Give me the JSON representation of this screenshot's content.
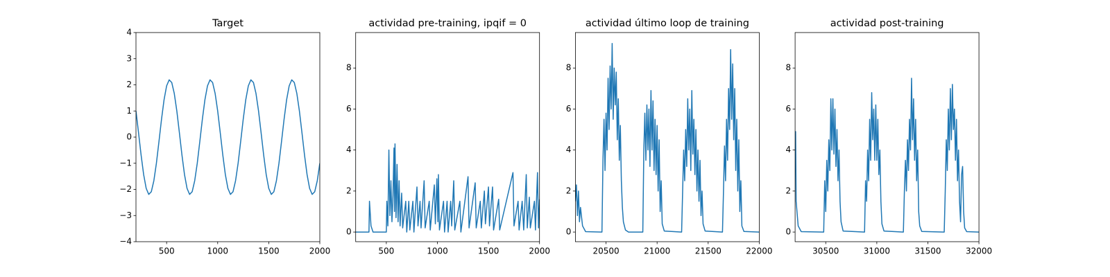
{
  "chart_data": [
    {
      "type": "line",
      "title": "Target",
      "color": "#1f77b4",
      "xlim": [
        200,
        2000
      ],
      "xticks": [
        500,
        1000,
        1500,
        2000
      ],
      "ylim": [
        -4,
        4
      ],
      "yticks": [
        {
          "value": -4,
          "label": "−4"
        },
        {
          "value": -3,
          "label": "−3"
        },
        {
          "value": -2,
          "label": "−2"
        },
        {
          "value": -1,
          "label": "−1"
        },
        0,
        1,
        2,
        3,
        4
      ],
      "x": [
        200,
        225,
        250,
        275,
        300,
        325,
        350,
        375,
        400,
        425,
        450,
        475,
        500,
        525,
        550,
        575,
        600,
        625,
        650,
        675,
        700,
        725,
        750,
        775,
        800,
        825,
        850,
        875,
        900,
        925,
        950,
        975,
        1000,
        1025,
        1050,
        1075,
        1100,
        1125,
        1150,
        1175,
        1200,
        1225,
        1250,
        1275,
        1300,
        1325,
        1350,
        1375,
        1400,
        1425,
        1450,
        1475,
        1500,
        1525,
        1550,
        1575,
        1600,
        1625,
        1650,
        1675,
        1700,
        1725,
        1750,
        1775,
        1800,
        1825,
        1850,
        1875,
        1900,
        1925,
        1950,
        1975,
        2000
      ],
      "values": [
        1.0,
        0.17,
        -0.68,
        -1.43,
        -1.96,
        -2.19,
        -2.09,
        -1.67,
        -1.0,
        -0.17,
        0.68,
        1.43,
        1.96,
        2.19,
        2.09,
        1.67,
        1.0,
        0.17,
        -0.68,
        -1.43,
        -1.96,
        -2.19,
        -2.09,
        -1.67,
        -1.0,
        -0.17,
        0.68,
        1.43,
        1.96,
        2.19,
        2.09,
        1.67,
        1.0,
        0.17,
        -0.68,
        -1.43,
        -1.96,
        -2.19,
        -2.09,
        -1.67,
        -1.0,
        -0.17,
        0.68,
        1.43,
        1.96,
        2.19,
        2.09,
        1.67,
        1.0,
        0.17,
        -0.68,
        -1.43,
        -1.96,
        -2.19,
        -2.09,
        -1.67,
        -1.0,
        -0.17,
        0.68,
        1.43,
        1.96,
        2.19,
        2.09,
        1.67,
        1.0,
        0.17,
        -0.68,
        -1.43,
        -1.96,
        -2.19,
        -2.09,
        -1.67,
        -1.0
      ]
    },
    {
      "type": "line",
      "title": "actividad pre-training, ipqif = 0",
      "color": "#1f77b4",
      "xlim": [
        200,
        2000
      ],
      "xticks": [
        500,
        1000,
        1500,
        2000
      ],
      "ylim": [
        -0.47,
        9.73
      ],
      "yticks": [
        0,
        2,
        4,
        6,
        8
      ],
      "x": [
        200,
        330,
        335,
        350,
        370,
        500,
        505,
        515,
        525,
        535,
        545,
        555,
        565,
        575,
        580,
        585,
        595,
        605,
        615,
        625,
        635,
        650,
        660,
        690,
        700,
        720,
        730,
        760,
        770,
        800,
        810,
        830,
        840,
        870,
        880,
        920,
        930,
        970,
        980,
        995,
        1005,
        1010,
        1020,
        1060,
        1070,
        1095,
        1105,
        1130,
        1140,
        1160,
        1170,
        1220,
        1230,
        1300,
        1310,
        1370,
        1380,
        1420,
        1430,
        1460,
        1470,
        1500,
        1510,
        1540,
        1550,
        1600,
        1610,
        1740,
        1750,
        1790,
        1800,
        1830,
        1845,
        1870,
        1880,
        1900,
        1910,
        1950,
        1960,
        1980,
        1990,
        2000
      ],
      "values": [
        0,
        0,
        1.5,
        0.3,
        0,
        0,
        1.5,
        0.3,
        4.0,
        0.8,
        2.5,
        0.5,
        1.8,
        4.1,
        1.0,
        4.3,
        0.7,
        3.3,
        0.5,
        2.5,
        0.3,
        1.9,
        0.2,
        1.5,
        0,
        1.5,
        0.1,
        1.5,
        0,
        2.2,
        0.3,
        1.5,
        0.2,
        2.5,
        0.2,
        1.5,
        0.1,
        2.3,
        0.4,
        2.6,
        0.5,
        2.8,
        0.1,
        1.5,
        0,
        1.5,
        0,
        1.5,
        0.3,
        2.5,
        0.1,
        1.5,
        0,
        2.7,
        0.2,
        2.4,
        0.2,
        1.5,
        0.2,
        2.0,
        0.4,
        2.2,
        0.3,
        2.2,
        0.1,
        1.6,
        0.1,
        2.9,
        0.3,
        1.5,
        0.1,
        1.5,
        0.1,
        2.8,
        0.2,
        1.7,
        0.2,
        1.5,
        0.1,
        2.9,
        0.2,
        1.6
      ]
    },
    {
      "type": "line",
      "title": "actividad último loop de training",
      "color": "#1f77b4",
      "xlim": [
        20200,
        22000
      ],
      "xticks": [
        20500,
        21000,
        21500,
        22000
      ],
      "ylim": [
        -0.47,
        9.73
      ],
      "yticks": [
        0,
        2,
        4,
        6,
        8
      ],
      "x": [
        20200,
        20210,
        20220,
        20230,
        20240,
        20250,
        20270,
        20300,
        20460,
        20470,
        20480,
        20490,
        20500,
        20510,
        20520,
        20530,
        20540,
        20550,
        20560,
        20570,
        20580,
        20590,
        20600,
        20610,
        20620,
        20630,
        20640,
        20650,
        20660,
        20670,
        20690,
        20720,
        20860,
        20870,
        20880,
        20890,
        20900,
        20910,
        20920,
        20930,
        20940,
        20950,
        20960,
        20970,
        20980,
        20990,
        21000,
        21010,
        21020,
        21030,
        21040,
        21050,
        21070,
        21240,
        21250,
        21260,
        21270,
        21280,
        21290,
        21300,
        21310,
        21320,
        21330,
        21340,
        21350,
        21360,
        21370,
        21380,
        21390,
        21400,
        21410,
        21420,
        21430,
        21440,
        21450,
        21470,
        21640,
        21650,
        21660,
        21670,
        21680,
        21690,
        21700,
        21710,
        21720,
        21730,
        21740,
        21750,
        21760,
        21770,
        21780,
        21790,
        21800,
        21810,
        21820,
        21830,
        21850,
        22000
      ],
      "values": [
        1.5,
        2.3,
        0.8,
        2.0,
        0.5,
        1.2,
        0.3,
        0.02,
        0,
        3.5,
        5.5,
        3.0,
        5.8,
        4.0,
        7.5,
        5.0,
        8.1,
        6.0,
        9.2,
        5.5,
        8.0,
        6.2,
        7.8,
        4.5,
        6.5,
        3.5,
        5.2,
        2.5,
        1.2,
        0.5,
        0.1,
        0,
        0,
        4.0,
        5.8,
        3.5,
        6.2,
        4.0,
        6.0,
        3.2,
        6.9,
        4.0,
        6.4,
        3.0,
        5.5,
        2.8,
        5.2,
        2.0,
        4.5,
        1.0,
        2.5,
        0.4,
        0.05,
        0,
        2.0,
        4.0,
        2.5,
        5.0,
        3.2,
        6.5,
        4.0,
        6.0,
        3.0,
        6.9,
        3.8,
        5.5,
        2.8,
        5.0,
        2.0,
        4.0,
        1.5,
        3.5,
        0.8,
        2.0,
        0.4,
        0.05,
        0,
        2.0,
        4.2,
        2.5,
        5.5,
        3.5,
        7.0,
        5.0,
        8.9,
        5.5,
        8.2,
        4.5,
        7.0,
        3.0,
        5.5,
        2.0,
        4.5,
        1.0,
        2.5,
        0.3,
        0.03,
        0
      ]
    },
    {
      "type": "line",
      "title": "actividad post-training",
      "color": "#1f77b4",
      "xlim": [
        30200,
        32000
      ],
      "xticks": [
        30500,
        31000,
        31500,
        32000
      ],
      "ylim": [
        -0.47,
        9.73
      ],
      "yticks": [
        0,
        2,
        4,
        6,
        8
      ],
      "x": [
        30200,
        30205,
        30210,
        30230,
        30260,
        30480,
        30490,
        30500,
        30510,
        30520,
        30530,
        30540,
        30550,
        30560,
        30570,
        30580,
        30590,
        30600,
        30610,
        30620,
        30630,
        30640,
        30650,
        30670,
        30880,
        30890,
        30900,
        30910,
        30920,
        30930,
        30940,
        30950,
        30960,
        30970,
        30980,
        30990,
        31000,
        31010,
        31020,
        31030,
        31040,
        31050,
        31070,
        31260,
        31270,
        31280,
        31290,
        31300,
        31310,
        31320,
        31330,
        31340,
        31350,
        31360,
        31370,
        31380,
        31390,
        31400,
        31410,
        31420,
        31440,
        31660,
        31670,
        31680,
        31690,
        31700,
        31710,
        31720,
        31730,
        31740,
        31750,
        31760,
        31770,
        31780,
        31790,
        31800,
        31810,
        31820,
        31830,
        31840,
        31850,
        31860,
        31880,
        32000
      ],
      "values": [
        3.0,
        4.9,
        1.5,
        0.3,
        0.02,
        0,
        2.5,
        1.0,
        3.5,
        2.0,
        4.5,
        3.0,
        6.5,
        4.0,
        6.5,
        3.8,
        6.0,
        3.2,
        5.0,
        2.5,
        4.0,
        1.5,
        0.5,
        0.05,
        0,
        2.5,
        1.5,
        4.0,
        2.5,
        5.5,
        3.5,
        6.8,
        4.5,
        6.0,
        3.5,
        6.2,
        3.5,
        5.5,
        2.8,
        4.0,
        1.5,
        0.4,
        0.05,
        0,
        2.0,
        3.5,
        2.0,
        4.5,
        3.0,
        5.5,
        4.0,
        7.5,
        4.5,
        6.5,
        3.5,
        5.5,
        2.5,
        4.0,
        1.0,
        0.3,
        0.03,
        0,
        2.0,
        4.5,
        3.0,
        6.0,
        4.0,
        7.0,
        4.5,
        7.2,
        5.0,
        6.0,
        3.5,
        5.5,
        2.5,
        4.0,
        1.5,
        0.5,
        2.8,
        3.2,
        1.0,
        0.2,
        0.02,
        0
      ]
    }
  ]
}
